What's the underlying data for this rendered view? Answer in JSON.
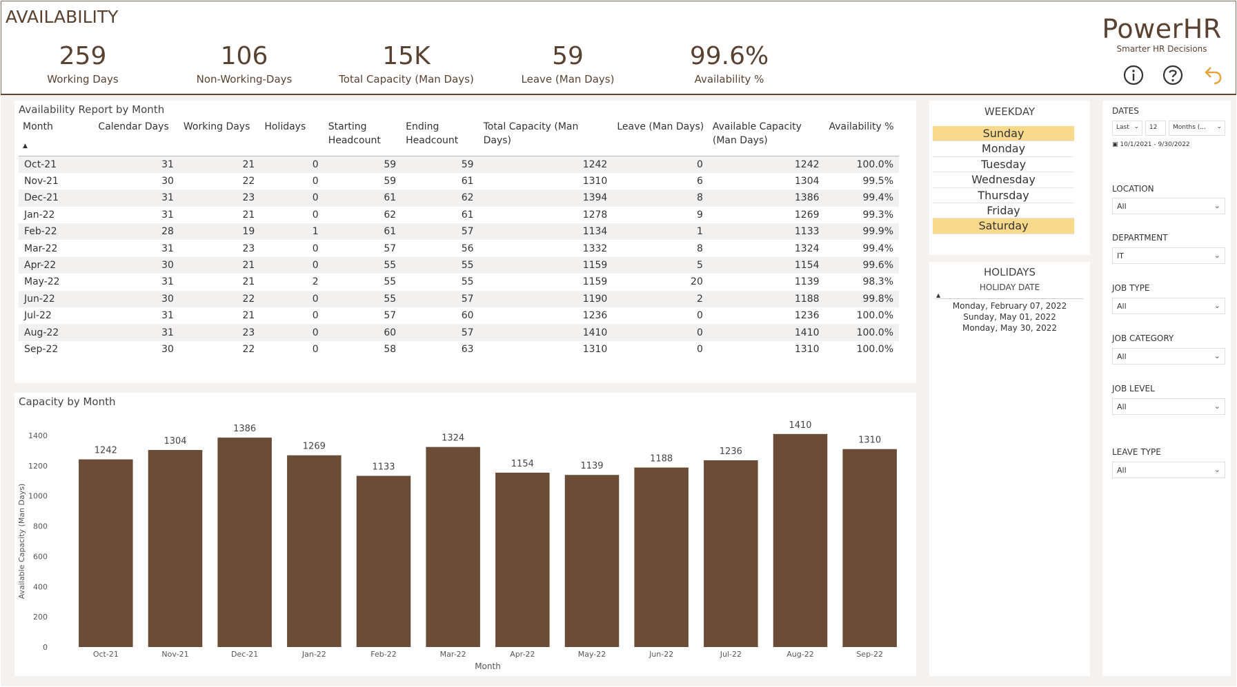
{
  "page_title": "AVAILABILITY",
  "brand": {
    "name": "PowerHR",
    "tagline": "Smarter HR Decisions"
  },
  "icons": [
    "info-icon",
    "help-icon",
    "back-icon"
  ],
  "colors": {
    "brand": "#5a4232",
    "bar": "#6b4c36",
    "selected": "#f9d98c",
    "back_icon": "#e8a43a"
  },
  "kpis": [
    {
      "value": "259",
      "label": "Working Days"
    },
    {
      "value": "106",
      "label": "Non-Working-Days"
    },
    {
      "value": "15K",
      "label": "Total Capacity (Man Days)"
    },
    {
      "value": "59",
      "label": "Leave (Man Days)"
    },
    {
      "value": "99.6%",
      "label": "Availability %"
    }
  ],
  "report": {
    "title": "Availability Report by Month",
    "sort_indicator": "▲",
    "columns": [
      "Month",
      "Calendar Days",
      "Working Days",
      "Holidays",
      "Starting Headcount",
      "Ending Headcount",
      "Total Capacity (Man Days)",
      "Leave (Man Days)",
      "Available Capacity (Man Days)",
      "Availability %"
    ],
    "rows": [
      [
        "Oct-21",
        "31",
        "21",
        "0",
        "59",
        "59",
        "1242",
        "0",
        "1242",
        "100.0%"
      ],
      [
        "Nov-21",
        "30",
        "22",
        "0",
        "59",
        "61",
        "1310",
        "6",
        "1304",
        "99.5%"
      ],
      [
        "Dec-21",
        "31",
        "23",
        "0",
        "61",
        "62",
        "1394",
        "8",
        "1386",
        "99.4%"
      ],
      [
        "Jan-22",
        "31",
        "21",
        "0",
        "62",
        "61",
        "1278",
        "9",
        "1269",
        "99.3%"
      ],
      [
        "Feb-22",
        "28",
        "19",
        "1",
        "61",
        "57",
        "1134",
        "1",
        "1133",
        "99.9%"
      ],
      [
        "Mar-22",
        "31",
        "23",
        "0",
        "57",
        "56",
        "1332",
        "8",
        "1324",
        "99.4%"
      ],
      [
        "Apr-22",
        "30",
        "21",
        "0",
        "55",
        "55",
        "1159",
        "5",
        "1154",
        "99.6%"
      ],
      [
        "May-22",
        "31",
        "21",
        "2",
        "55",
        "55",
        "1159",
        "20",
        "1139",
        "98.3%"
      ],
      [
        "Jun-22",
        "30",
        "22",
        "0",
        "55",
        "57",
        "1190",
        "2",
        "1188",
        "99.8%"
      ],
      [
        "Jul-22",
        "31",
        "21",
        "0",
        "57",
        "60",
        "1236",
        "0",
        "1236",
        "100.0%"
      ],
      [
        "Aug-22",
        "31",
        "23",
        "0",
        "60",
        "57",
        "1410",
        "0",
        "1410",
        "100.0%"
      ],
      [
        "Sep-22",
        "30",
        "22",
        "0",
        "58",
        "63",
        "1310",
        "0",
        "1310",
        "100.0%"
      ]
    ]
  },
  "weekday": {
    "title": "WEEKDAY",
    "items": [
      {
        "label": "Sunday",
        "selected": true
      },
      {
        "label": "Monday",
        "selected": false
      },
      {
        "label": "Tuesday",
        "selected": false
      },
      {
        "label": "Wednesday",
        "selected": false
      },
      {
        "label": "Thursday",
        "selected": false
      },
      {
        "label": "Friday",
        "selected": false
      },
      {
        "label": "Saturday",
        "selected": true
      }
    ]
  },
  "holidays": {
    "title": "HOLIDAYS",
    "column": "HOLIDAY DATE",
    "sort_indicator": "▲",
    "dates": [
      "Monday, February 07, 2022",
      "Sunday, May 01, 2022",
      "Monday, May 30, 2022"
    ]
  },
  "filters": {
    "dates": {
      "label": "DATES",
      "relative": "Last",
      "count": "12",
      "unit": "Months (...",
      "range": "10/1/2021 - 9/30/2022"
    },
    "location": {
      "label": "LOCATION",
      "value": "All"
    },
    "department": {
      "label": "DEPARTMENT",
      "value": "IT"
    },
    "job_type": {
      "label": "JOB TYPE",
      "value": "All"
    },
    "job_category": {
      "label": "JOB CATEGORY",
      "value": "All"
    },
    "job_level": {
      "label": "JOB LEVEL",
      "value": "All"
    },
    "leave_type": {
      "label": "LEAVE TYPE",
      "value": "All"
    }
  },
  "chart_data": {
    "type": "bar",
    "title": "Capacity by Month",
    "categories": [
      "Oct-21",
      "Nov-21",
      "Dec-21",
      "Jan-22",
      "Feb-22",
      "Mar-22",
      "Apr-22",
      "May-22",
      "Jun-22",
      "Jul-22",
      "Aug-22",
      "Sep-22"
    ],
    "values": [
      1242,
      1304,
      1386,
      1269,
      1133,
      1324,
      1154,
      1139,
      1188,
      1236,
      1410,
      1310
    ],
    "xlabel": "Month",
    "ylabel": "Available Capacity (Man Days)",
    "ylim": [
      0,
      1400
    ],
    "yticks": [
      0,
      200,
      400,
      600,
      800,
      1000,
      1200,
      1400
    ],
    "data_labels": true,
    "grid": false
  }
}
